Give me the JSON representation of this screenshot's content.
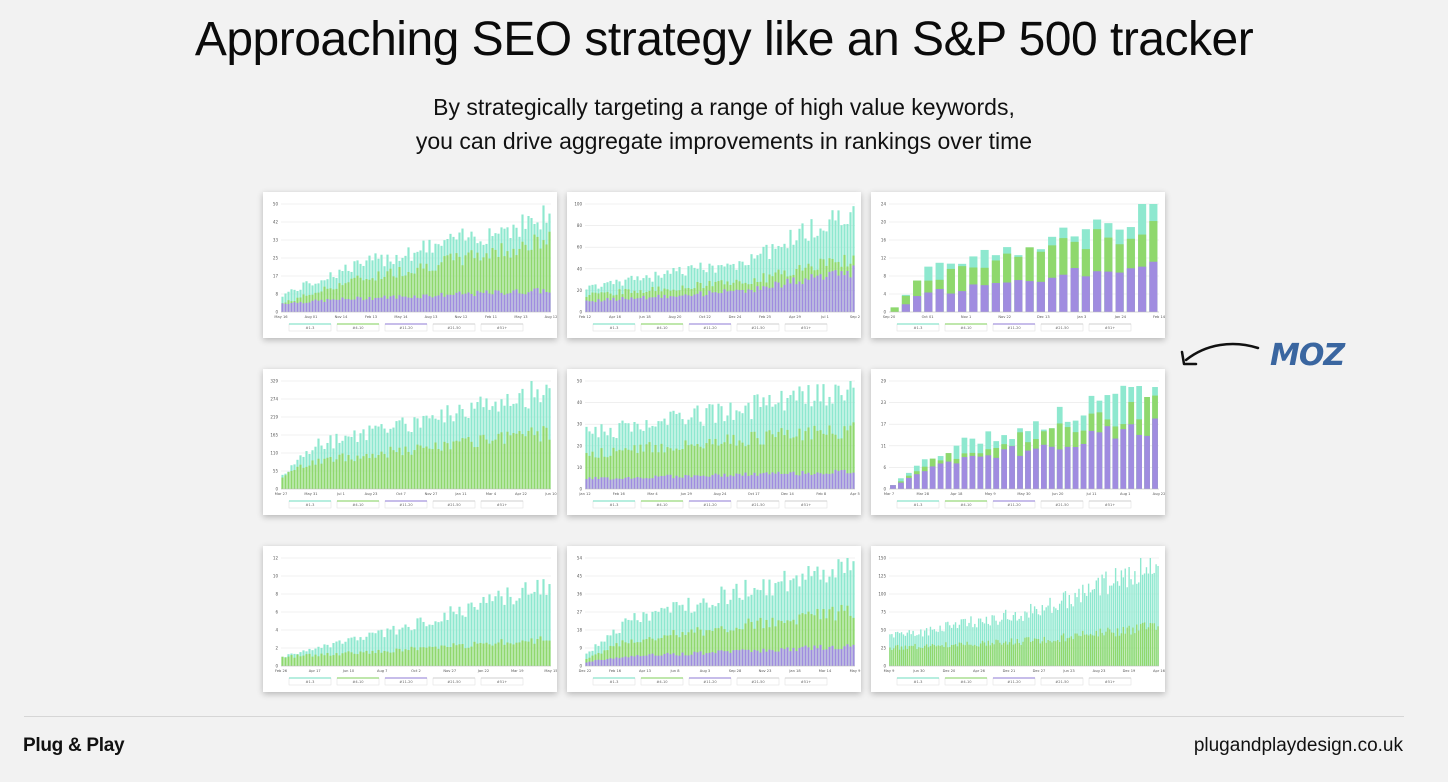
{
  "header": {
    "title": "Approaching SEO strategy like an S&P 500 tracker",
    "subtitle_line1": "By strategically targeting a range of high value keywords,",
    "subtitle_line2": "you can drive aggregate improvements in rankings over time"
  },
  "moz_logo": {
    "text": "MOZ",
    "color": "#3a66a0",
    "arrow_icon": "curved-arrow-left-icon"
  },
  "legend_items": [
    "#1-3",
    "#4-10",
    "#11-20",
    "#21-50",
    "#51+"
  ],
  "colors": {
    "teal": "#8ee8cf",
    "green": "#8fd86d",
    "purple": "#a08ce0",
    "teal_line": "#6fdcbf",
    "green_line": "#7fcf5a",
    "purple_line": "#8f7bd6"
  },
  "chart_data": [
    {
      "type": "bar",
      "stacked": true,
      "n": 90,
      "y_ticks": [
        "0",
        "8",
        "17",
        "25",
        "33",
        "42",
        "50"
      ],
      "x_ticks": [
        "May 16",
        "Aug 01",
        "Nov 14",
        "Feb 13",
        "May 14",
        "Aug 13",
        "Nov 12",
        "Feb 11",
        "May 13",
        "Aug 12"
      ],
      "series_end": {
        "purple": [
          4,
          10
        ],
        "green": [
          4,
          33
        ],
        "teal": [
          8,
          44
        ]
      },
      "jump_at": 0.25
    },
    {
      "type": "bar",
      "stacked": true,
      "n": 90,
      "y_ticks": [
        "0",
        "20",
        "40",
        "60",
        "80",
        "100"
      ],
      "x_ticks": [
        "Feb 12",
        "Apr 16",
        "Jun 18",
        "Aug 20",
        "Oct 22",
        "Dec 24",
        "Feb 25",
        "Apr 29",
        "Jul 1",
        "Sep 2"
      ],
      "series_end": {
        "purple": [
          10,
          38
        ],
        "green": [
          16,
          50
        ],
        "teal": [
          22,
          95
        ]
      },
      "jump_at": 0.6
    },
    {
      "type": "bar",
      "stacked": true,
      "n": 24,
      "y_ticks": [
        "0",
        "4",
        "8",
        "12",
        "16",
        "20",
        "24"
      ],
      "x_ticks": [
        "Sep 20",
        "Oct 01",
        "Nov 1",
        "Nov 22",
        "Dec 13",
        "Jan 3",
        "Jan 24",
        "Feb 14"
      ],
      "series_end": {
        "purple": [
          0,
          11
        ],
        "green": [
          1,
          19
        ],
        "teal": [
          1,
          23
        ]
      },
      "jump_at": 0.1
    },
    {
      "type": "bar",
      "stacked": true,
      "n": 90,
      "y_ticks": [
        "0",
        "55",
        "110",
        "165",
        "219",
        "274",
        "329"
      ],
      "x_ticks": [
        "Mar 27",
        "May 31",
        "Jul 1",
        "Aug 23",
        "Oct 7",
        "Nov 27",
        "Jan 11",
        "Mar 4",
        "Apr 22",
        "Jun 10"
      ],
      "series_end": {
        "purple": [
          0,
          0
        ],
        "green": [
          40,
          170
        ],
        "teal": [
          40,
          300
        ]
      },
      "jump_at": 0.12
    },
    {
      "type": "bar",
      "stacked": true,
      "n": 90,
      "y_ticks": [
        "0",
        "10",
        "20",
        "30",
        "40",
        "50"
      ],
      "x_ticks": [
        "Jan 12",
        "Feb 16",
        "Mar 4",
        "Jun 29",
        "Aug 24",
        "Oct 17",
        "Dec 14",
        "Feb 8",
        "Apr 5"
      ],
      "series_end": {
        "purple": [
          3,
          8
        ],
        "green": [
          10,
          28
        ],
        "teal": [
          14,
          46
        ]
      },
      "jump_at": 0.0
    },
    {
      "type": "bar",
      "stacked": true,
      "n": 34,
      "y_ticks": [
        "0",
        "6",
        "11",
        "17",
        "23",
        "29"
      ],
      "x_ticks": [
        "Mar 7",
        "Mar 28",
        "Apr 18",
        "May 9",
        "May 30",
        "Jun 20",
        "Jul 11",
        "Aug 1",
        "Aug 22"
      ],
      "series_end": {
        "purple": [
          1,
          17
        ],
        "green": [
          1,
          22
        ],
        "teal": [
          1,
          27
        ]
      },
      "jump_at": 0.18
    },
    {
      "type": "bar",
      "stacked": true,
      "n": 90,
      "y_ticks": [
        "0",
        "2",
        "4",
        "6",
        "8",
        "10",
        "12"
      ],
      "x_ticks": [
        "Feb 26",
        "Apr 17",
        "Jun 10",
        "Aug 7",
        "Oct 2",
        "Nov 27",
        "Jan 22",
        "Mar 19",
        "May 15"
      ],
      "series_end": {
        "purple": [
          0,
          0
        ],
        "green": [
          1,
          3
        ],
        "teal": [
          1,
          9
        ]
      },
      "jump_at": 0.4
    },
    {
      "type": "bar",
      "stacked": true,
      "n": 90,
      "y_ticks": [
        "0",
        "9",
        "18",
        "27",
        "36",
        "45",
        "54"
      ],
      "x_ticks": [
        "Dec 22",
        "Feb 16",
        "Apr 13",
        "Jun 8",
        "Aug 3",
        "Sep 28",
        "Nov 23",
        "Jan 18",
        "Mar 14",
        "May 9"
      ],
      "series_end": {
        "purple": [
          2,
          10
        ],
        "green": [
          4,
          28
        ],
        "teal": [
          6,
          52
        ]
      },
      "jump_at": 0.15
    },
    {
      "type": "bar",
      "stacked": true,
      "n": 140,
      "y_ticks": [
        "0",
        "25",
        "50",
        "75",
        "100",
        "125",
        "150"
      ],
      "x_ticks": [
        "May 9",
        "Jun 30",
        "Dec 20",
        "Apr 26",
        "Dec 21",
        "Dec 27",
        "Jun 23",
        "Aug 23",
        "Dec 19",
        "Apr 16"
      ],
      "series_end": {
        "purple": [
          0,
          0
        ],
        "green": [
          25,
          55
        ],
        "teal": [
          40,
          145
        ]
      },
      "jump_at": 0.55
    }
  ],
  "footer": {
    "brand": "Plug & Play",
    "website": "plugandplaydesign.co.uk"
  }
}
